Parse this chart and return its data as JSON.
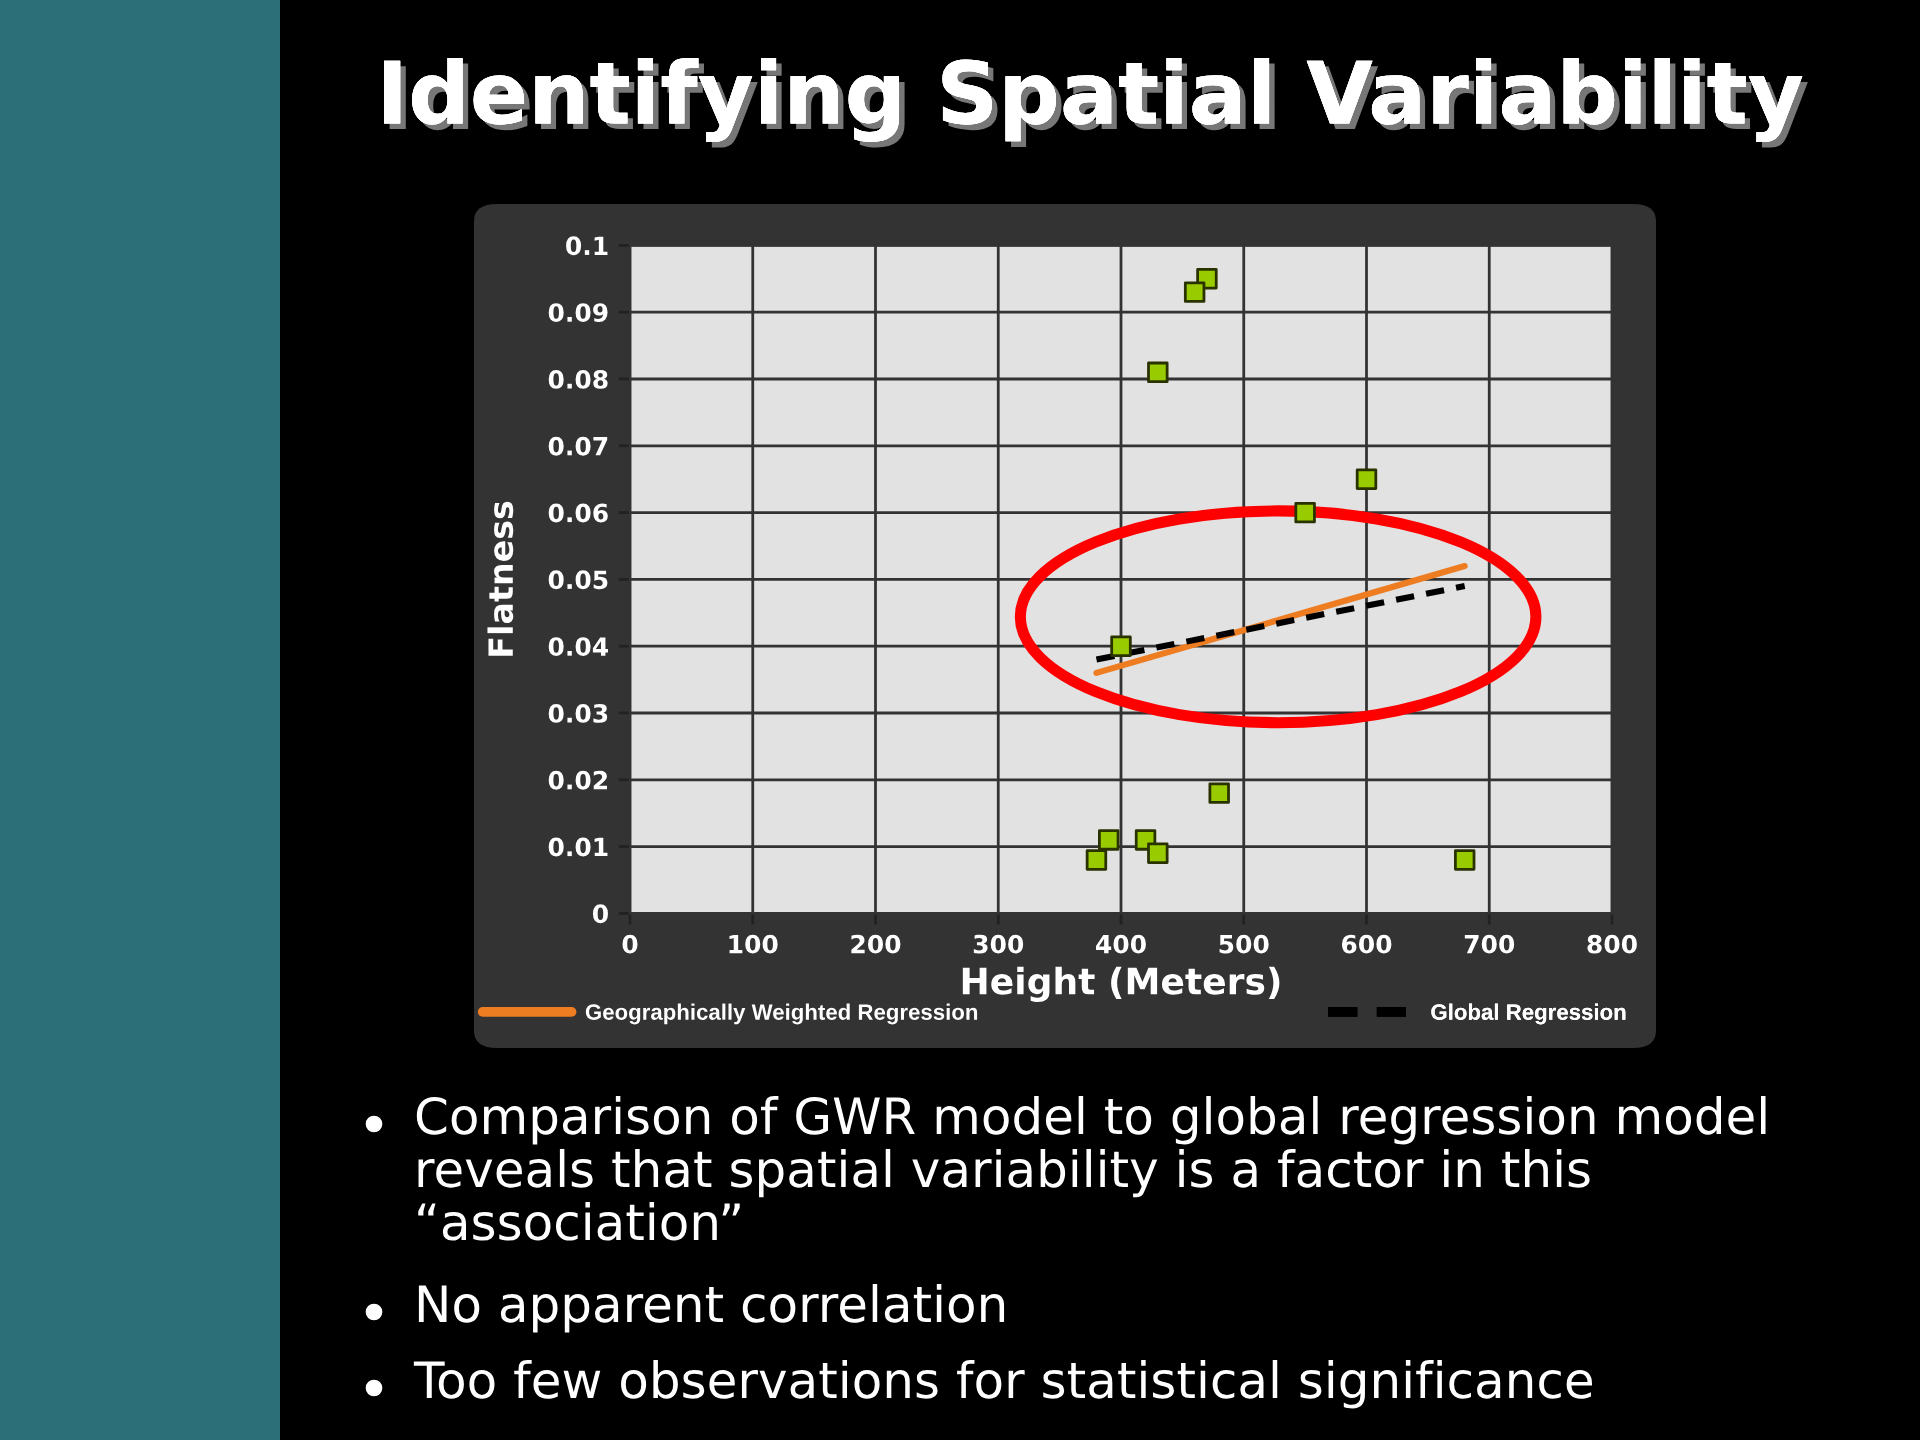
{
  "chart_data": {
    "type": "scatter",
    "title": "Identifying Spatial Variability",
    "xlabel": "Height (Meters)",
    "ylabel": "Flatness",
    "xlim": [
      0,
      800
    ],
    "xticks": [
      0,
      100,
      200,
      300,
      400,
      500,
      600,
      700,
      800
    ],
    "ylim": [
      0,
      0.1
    ],
    "yticks": [
      0,
      0.01,
      0.02,
      0.03,
      0.04,
      0.05,
      0.06,
      0.07,
      0.08,
      0.09,
      0.1
    ],
    "grid": true,
    "legend": "bottom",
    "marker": "square",
    "series": [
      {
        "color": "#99cc00",
        "x": [
          380,
          390,
          420,
          430,
          480,
          680,
          400,
          470,
          460,
          430,
          600,
          550
        ],
        "values": [
          0.008,
          0.011,
          0.011,
          0.009,
          0.018,
          0.008,
          0.04,
          0.095,
          0.093,
          0.081,
          0.065,
          0.06
        ]
      },
      {
        "type": "line",
        "name": "Geographically Weighted Regression",
        "color": "#ee7d22",
        "x": [
          380,
          680
        ],
        "values": [
          0.036,
          0.052
        ],
        "line_style": "solid",
        "marker": "none"
      },
      {
        "type": "line",
        "name": "Global Regression",
        "color": "#000000",
        "x": [
          380,
          680
        ],
        "values": [
          0.038,
          0.049
        ],
        "line_style": "dashed",
        "marker": "none"
      }
    ],
    "annotations": [
      "Comparison of GWR model to global regression model reveals that spatial variability is a factor in this “association”",
      "No apparent correlation",
      "Too few observations for statistical significance"
    ]
  }
}
